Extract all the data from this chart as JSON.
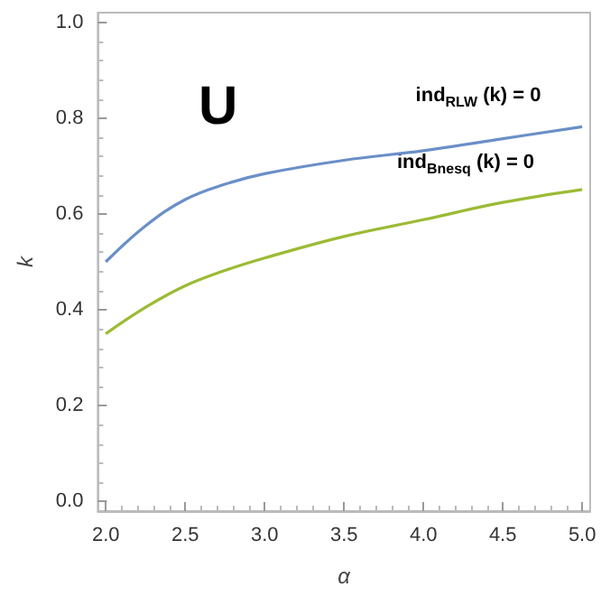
{
  "chart_data": {
    "type": "line",
    "xlabel": "α",
    "ylabel": "k",
    "x": [
      2.0,
      2.25,
      2.5,
      2.75,
      3.0,
      3.5,
      4.0,
      4.5,
      5.0
    ],
    "series": [
      {
        "color": "#6a8fc8",
        "values": [
          0.5,
          0.575,
          0.63,
          0.662,
          0.684,
          0.712,
          0.732,
          0.757,
          0.782
        ]
      },
      {
        "color": "#9bbb34",
        "values": [
          0.35,
          0.405,
          0.45,
          0.482,
          0.508,
          0.553,
          0.588,
          0.624,
          0.651
        ]
      }
    ],
    "xlim": [
      1.95,
      5.05
    ],
    "ylim": [
      -0.02,
      1.02
    ],
    "xticks": [
      {
        "value": 2,
        "label": "2.0"
      },
      {
        "value": 2.5,
        "label": "2.5"
      },
      {
        "value": 3,
        "label": "3.0"
      },
      {
        "value": 3.5,
        "label": "3.5"
      },
      {
        "value": 4,
        "label": "4.0"
      },
      {
        "value": 4.5,
        "label": "4.5"
      },
      {
        "value": 5,
        "label": "5.0"
      }
    ],
    "yticks": [
      {
        "value": 0,
        "label": "0.0"
      },
      {
        "value": 0.2,
        "label": "0.2"
      },
      {
        "value": 0.4,
        "label": "0.4"
      },
      {
        "value": 0.6,
        "label": "0.6"
      },
      {
        "value": 0.8,
        "label": "0.8"
      },
      {
        "value": 1,
        "label": "1.0"
      }
    ],
    "annotations": [
      "U",
      "ind$_{RLW}$ (k) = 0",
      "ind$_{Bnesq}$ (k) = 0"
    ],
    "grid": false,
    "marker": "none",
    "line_style": "solid"
  }
}
